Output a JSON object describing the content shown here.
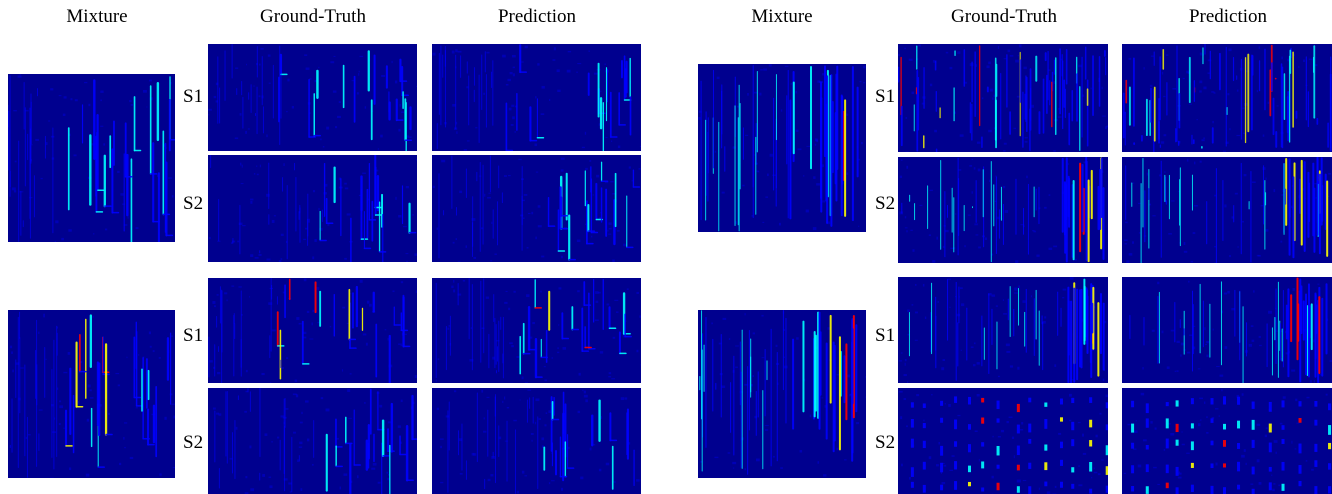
{
  "headers": {
    "left_mixture": "Mixture",
    "left_ground_truth": "Ground-Truth",
    "left_prediction": "Prediction",
    "right_mixture": "Mixture",
    "right_ground_truth": "Ground-Truth",
    "right_prediction": "Prediction"
  },
  "source_labels": {
    "s1": "S1",
    "s2": "S2"
  },
  "colormap": [
    "#00008f",
    "#0000ff",
    "#00ffff",
    "#ffff00",
    "#ff0000",
    "#800000"
  ]
}
